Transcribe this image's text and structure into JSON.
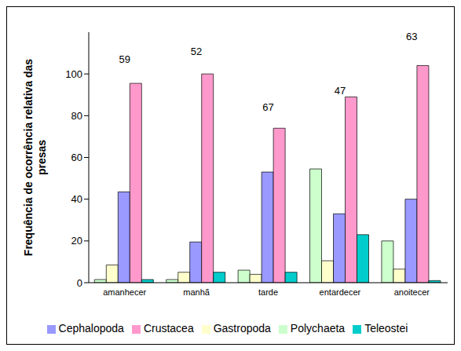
{
  "chart_data": {
    "type": "bar",
    "ylabel": "Frequência de ocorrência relativa das presas",
    "categories": [
      "amanhecer",
      "manhã",
      "tarde",
      "entardecer",
      "anoitecer"
    ],
    "series": [
      {
        "name": "Polychaeta",
        "color": "#ccffcc",
        "values": [
          1.5,
          1.5,
          6,
          54.5,
          20
        ]
      },
      {
        "name": "Gastropoda",
        "color": "#ffffcc",
        "values": [
          8.5,
          5,
          4,
          10.5,
          6.5
        ]
      },
      {
        "name": "Cephalopoda",
        "color": "#9999ff",
        "values": [
          43.5,
          19.5,
          53,
          33,
          40
        ]
      },
      {
        "name": "Crustacea",
        "color": "#ff99cc",
        "values": [
          95.5,
          100,
          74,
          89,
          104
        ]
      },
      {
        "name": "Teleostei",
        "color": "#00cccc",
        "values": [
          1.5,
          5,
          5,
          23,
          1
        ]
      }
    ],
    "annotations": [
      {
        "category": "amanhecer",
        "text": "59",
        "y": 107
      },
      {
        "category": "manhã",
        "text": "52",
        "y": 111
      },
      {
        "category": "tarde",
        "text": "67",
        "y": 84
      },
      {
        "category": "entardecer",
        "text": "47",
        "y": 92
      },
      {
        "category": "anoitecer",
        "text": "63",
        "y": 118
      }
    ],
    "ylim": [
      0,
      120
    ],
    "yticks": [
      0,
      20,
      40,
      60,
      80,
      100
    ],
    "grid": false,
    "legend": "bottom"
  }
}
